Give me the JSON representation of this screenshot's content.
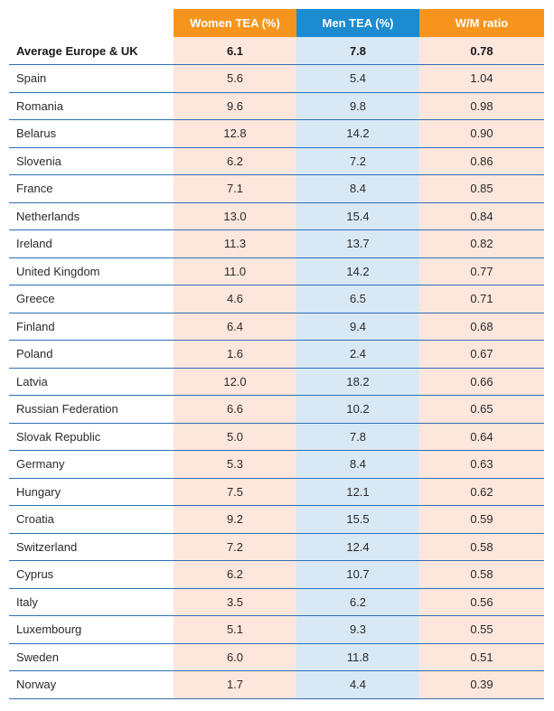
{
  "chart_data": {
    "type": "table",
    "columns": [
      "",
      "Women TEA (%)",
      "Men TEA (%)",
      "W/M ratio"
    ],
    "average": {
      "country": "Average Europe & UK",
      "women": "6.1",
      "men": "7.8",
      "ratio": "0.78"
    },
    "rows": [
      {
        "country": "Spain",
        "women": "5.6",
        "men": "5.4",
        "ratio": "1.04"
      },
      {
        "country": "Romania",
        "women": "9.6",
        "men": "9.8",
        "ratio": "0.98"
      },
      {
        "country": "Belarus",
        "women": "12.8",
        "men": "14.2",
        "ratio": "0.90"
      },
      {
        "country": "Slovenia",
        "women": "6.2",
        "men": "7.2",
        "ratio": "0.86"
      },
      {
        "country": "France",
        "women": "7.1",
        "men": "8.4",
        "ratio": "0.85"
      },
      {
        "country": "Netherlands",
        "women": "13.0",
        "men": "15.4",
        "ratio": "0.84"
      },
      {
        "country": "Ireland",
        "women": "11.3",
        "men": "13.7",
        "ratio": "0.82"
      },
      {
        "country": "United Kingdom",
        "women": "11.0",
        "men": "14.2",
        "ratio": "0.77"
      },
      {
        "country": "Greece",
        "women": "4.6",
        "men": "6.5",
        "ratio": "0.71"
      },
      {
        "country": "Finland",
        "women": "6.4",
        "men": "9.4",
        "ratio": "0.68"
      },
      {
        "country": "Poland",
        "women": "1.6",
        "men": "2.4",
        "ratio": "0.67"
      },
      {
        "country": "Latvia",
        "women": "12.0",
        "men": "18.2",
        "ratio": "0.66"
      },
      {
        "country": "Russian Federation",
        "women": "6.6",
        "men": "10.2",
        "ratio": "0.65"
      },
      {
        "country": "Slovak Republic",
        "women": "5.0",
        "men": "7.8",
        "ratio": "0.64"
      },
      {
        "country": "Germany",
        "women": "5.3",
        "men": "8.4",
        "ratio": "0.63"
      },
      {
        "country": "Hungary",
        "women": "7.5",
        "men": "12.1",
        "ratio": "0.62"
      },
      {
        "country": "Croatia",
        "women": "9.2",
        "men": "15.5",
        "ratio": "0.59"
      },
      {
        "country": "Switzerland",
        "women": "7.2",
        "men": "12.4",
        "ratio": "0.58"
      },
      {
        "country": "Cyprus",
        "women": "6.2",
        "men": "10.7",
        "ratio": "0.58"
      },
      {
        "country": "Italy",
        "women": "3.5",
        "men": "6.2",
        "ratio": "0.56"
      },
      {
        "country": "Luxembourg",
        "women": "5.1",
        "men": "9.3",
        "ratio": "0.55"
      },
      {
        "country": "Sweden",
        "women": "6.0",
        "men": "11.8",
        "ratio": "0.51"
      },
      {
        "country": "Norway",
        "women": "1.7",
        "men": "4.4",
        "ratio": "0.39"
      }
    ]
  },
  "colors": {
    "women_header": "#f7941d",
    "men_header": "#1c8bd0",
    "ratio_header": "#f7941d",
    "women_cell": "#fde6dc",
    "men_cell": "#d8e8f4",
    "ratio_cell": "#fde6dc",
    "row_rule": "#2f6fb3"
  }
}
